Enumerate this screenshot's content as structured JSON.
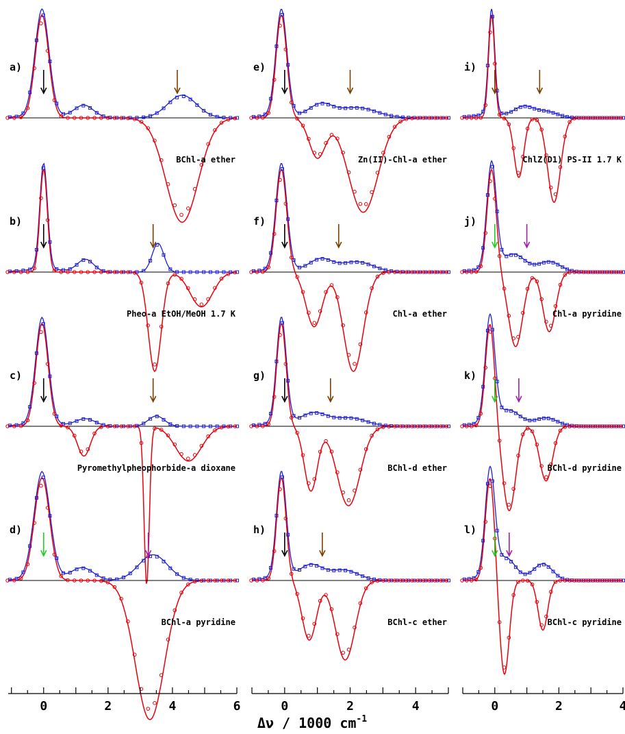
{
  "figure": {
    "xlabel": "Δν / 1000 cm",
    "xlabel_sup": "-1",
    "colors": {
      "emission_line": "#e8000b",
      "absorption_line": "#1f1fd2",
      "axis": "#000000",
      "arrow_black": "#000000",
      "arrow_brown": "#7b3f00",
      "arrow_green": "#22cc22",
      "arrow_magenta": "#a020a0"
    }
  },
  "chart_data": [
    {
      "type": "line",
      "panel": "a)",
      "label": "BChl-a ether",
      "xlim": [
        -1.1,
        6.0
      ],
      "xticks": [
        0,
        2,
        4,
        6
      ],
      "peak": -0.05,
      "peak_width": 0.22,
      "blue": [
        [
          1.25,
          0.12,
          0.3
        ],
        [
          4.3,
          0.22,
          0.45
        ]
      ],
      "red_neg": [
        [
          4.3,
          1.05,
          0.5
        ]
      ],
      "arrows": [
        {
          "x": 0,
          "color": "black"
        },
        {
          "x": 4.15,
          "color": "brown"
        }
      ]
    },
    {
      "type": "line",
      "panel": "b)",
      "label": "Pheo-a EtOH/MeOH 1.7 K",
      "xlim": [
        -1.1,
        6.0
      ],
      "xticks": [
        0,
        2,
        4,
        6
      ],
      "peak": 0.0,
      "peak_width": 0.12,
      "blue": [
        [
          1.3,
          0.12,
          0.25
        ],
        [
          3.55,
          0.28,
          0.18
        ]
      ],
      "red_neg": [
        [
          3.45,
          1.0,
          0.2
        ],
        [
          4.9,
          0.35,
          0.35
        ]
      ],
      "arrows": [
        {
          "x": 0,
          "color": "black"
        },
        {
          "x": 3.4,
          "color": "brown"
        }
      ]
    },
    {
      "type": "line",
      "panel": "c)",
      "label": "Pyromethylpheophorbide-a dioxane",
      "xlim": [
        -1.1,
        6.0
      ],
      "xticks": [
        0,
        2,
        4,
        6
      ],
      "peak": -0.05,
      "peak_width": 0.2,
      "blue": [
        [
          1.3,
          0.07,
          0.3
        ],
        [
          3.5,
          0.1,
          0.25
        ]
      ],
      "red_neg": [
        [
          1.25,
          0.3,
          0.2
        ],
        [
          3.2,
          1.6,
          0.08
        ],
        [
          4.5,
          0.35,
          0.4
        ]
      ],
      "arrows": [
        {
          "x": 0,
          "color": "black"
        },
        {
          "x": 3.4,
          "color": "brown"
        }
      ]
    },
    {
      "type": "line",
      "panel": "d)",
      "label": "BChl-a pyridine",
      "xlim": [
        -1.1,
        6.0
      ],
      "xticks": [
        0,
        2,
        4,
        6
      ],
      "peak": -0.05,
      "peak_width": 0.25,
      "blue": [
        [
          1.2,
          0.12,
          0.35
        ],
        [
          3.4,
          0.25,
          0.45
        ]
      ],
      "red_neg": [
        [
          3.3,
          1.4,
          0.45
        ]
      ],
      "arrows": [
        {
          "x": 0,
          "color": "green"
        },
        {
          "x": 3.25,
          "color": "magenta"
        }
      ]
    },
    {
      "type": "line",
      "panel": "e)",
      "label": "Zn(II)-Chl-a ether",
      "xlim": [
        -1.0,
        5.0
      ],
      "xticks": [
        0,
        2,
        4
      ],
      "peak": -0.1,
      "peak_width": 0.17,
      "blue": [
        [
          1.1,
          0.12,
          0.35
        ],
        [
          2.2,
          0.1,
          0.6
        ]
      ],
      "red_neg": [
        [
          1.0,
          0.4,
          0.25
        ],
        [
          2.4,
          0.95,
          0.45
        ]
      ],
      "arrows": [
        {
          "x": 0,
          "color": "black"
        },
        {
          "x": 2.0,
          "color": "brown"
        }
      ]
    },
    {
      "type": "line",
      "panel": "f)",
      "label": "Chl-a ether",
      "xlim": [
        -1.0,
        5.0
      ],
      "xticks": [
        0,
        2,
        4
      ],
      "peak": -0.1,
      "peak_width": 0.17,
      "blue": [
        [
          1.1,
          0.12,
          0.35
        ],
        [
          2.2,
          0.1,
          0.5
        ]
      ],
      "red_neg": [
        [
          0.9,
          0.55,
          0.25
        ],
        [
          2.1,
          1.0,
          0.3
        ]
      ],
      "arrows": [
        {
          "x": 0,
          "color": "black"
        },
        {
          "x": 1.65,
          "color": "brown"
        }
      ]
    },
    {
      "type": "line",
      "panel": "g)",
      "label": "BChl-d ether",
      "xlim": [
        -1.0,
        5.0
      ],
      "xticks": [
        0,
        2,
        4
      ],
      "peak": -0.1,
      "peak_width": 0.15,
      "blue": [
        [
          0.9,
          0.12,
          0.4
        ],
        [
          2.0,
          0.08,
          0.5
        ]
      ],
      "red_neg": [
        [
          0.8,
          0.65,
          0.2
        ],
        [
          1.95,
          0.8,
          0.35
        ]
      ],
      "arrows": [
        {
          "x": 0,
          "color": "black"
        },
        {
          "x": 1.4,
          "color": "brown"
        }
      ]
    },
    {
      "type": "line",
      "panel": "h)",
      "label": "BChl-c ether",
      "xlim": [
        -1.0,
        5.0
      ],
      "xticks": [
        0,
        2,
        4
      ],
      "peak": -0.1,
      "peak_width": 0.15,
      "blue": [
        [
          0.8,
          0.14,
          0.35
        ],
        [
          1.8,
          0.1,
          0.45
        ]
      ],
      "red_neg": [
        [
          0.75,
          0.6,
          0.22
        ],
        [
          1.85,
          0.8,
          0.3
        ]
      ],
      "arrows": [
        {
          "x": 0,
          "color": "black"
        },
        {
          "x": 1.15,
          "color": "brown"
        }
      ]
    },
    {
      "type": "line",
      "panel": "i)",
      "label": "ChlZ(D1) PS-II 1.7 K",
      "xlim": [
        -1.0,
        4.0
      ],
      "xticks": [
        0,
        2,
        4
      ],
      "peak": -0.1,
      "peak_width": 0.1,
      "blue": [
        [
          0.9,
          0.1,
          0.3
        ],
        [
          1.6,
          0.06,
          0.35
        ]
      ],
      "red_neg": [
        [
          0.75,
          0.6,
          0.15
        ],
        [
          1.85,
          0.85,
          0.2
        ]
      ],
      "arrows": [
        {
          "x": 0,
          "color": "brown"
        },
        {
          "x": 1.4,
          "color": "brown"
        }
      ]
    },
    {
      "type": "line",
      "panel": "j)",
      "label": "Chl-a pyridine",
      "xlim": [
        -1.0,
        4.0
      ],
      "xticks": [
        0,
        2,
        4
      ],
      "peak": -0.1,
      "peak_width": 0.15,
      "blue": [
        [
          0.6,
          0.16,
          0.35
        ],
        [
          1.7,
          0.1,
          0.35
        ]
      ],
      "red_neg": [
        [
          0.65,
          0.75,
          0.22
        ],
        [
          1.7,
          0.6,
          0.2
        ]
      ],
      "arrows": [
        {
          "x": 0,
          "color": "green"
        },
        {
          "x": 1.0,
          "color": "magenta"
        }
      ]
    },
    {
      "type": "line",
      "panel": "k)",
      "label": "BChl-d pyridine",
      "xlim": [
        -1.0,
        4.0
      ],
      "xticks": [
        0,
        2,
        4
      ],
      "peak": -0.15,
      "peak_width": 0.15,
      "blue": [
        [
          0.45,
          0.14,
          0.35
        ],
        [
          1.6,
          0.08,
          0.35
        ]
      ],
      "red_neg": [
        [
          0.45,
          0.85,
          0.2
        ],
        [
          1.6,
          0.55,
          0.2
        ]
      ],
      "arrows": [
        {
          "x": 0,
          "color": "green"
        },
        {
          "x": 0.75,
          "color": "magenta"
        }
      ]
    },
    {
      "type": "line",
      "panel": "l)",
      "label": "BChl-c pyridine",
      "xlim": [
        -1.0,
        4.0
      ],
      "xticks": [
        0,
        2,
        4
      ],
      "peak": -0.15,
      "peak_width": 0.15,
      "blue": [
        [
          0.35,
          0.2,
          0.3
        ],
        [
          1.5,
          0.16,
          0.3
        ]
      ],
      "red_neg": [
        [
          0.3,
          0.95,
          0.15
        ],
        [
          1.5,
          0.5,
          0.15
        ]
      ],
      "arrows": [
        {
          "x": 0,
          "color": "green"
        },
        {
          "x": 0.45,
          "color": "magenta"
        }
      ]
    }
  ]
}
